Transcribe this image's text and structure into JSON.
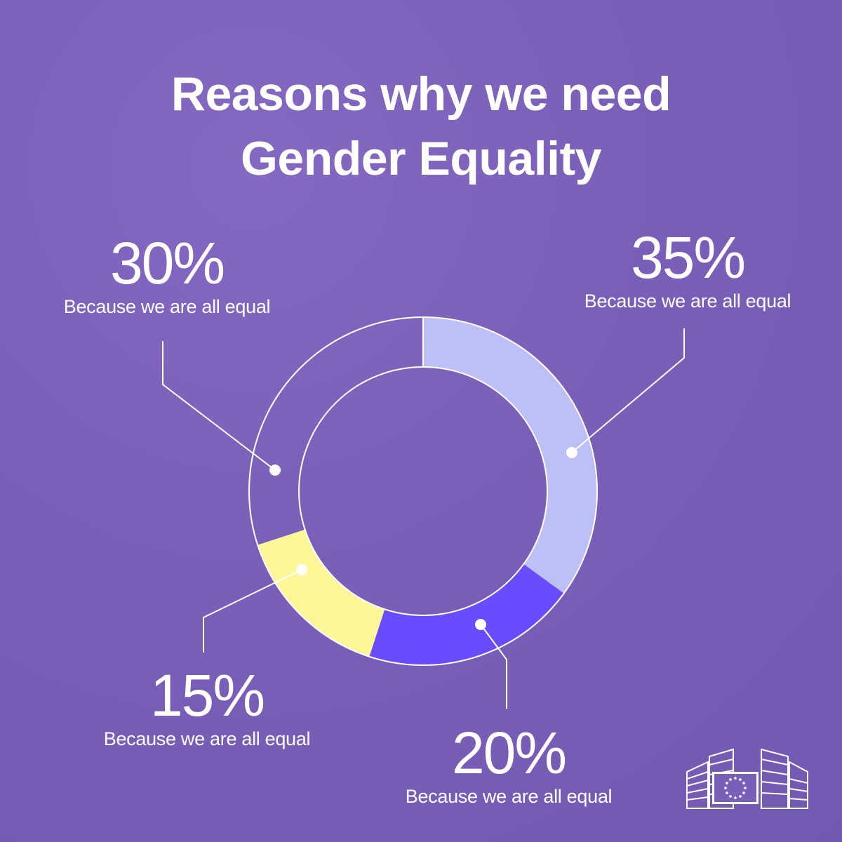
{
  "title": {
    "line1": "Reasons why we need",
    "line2": "Gender Equality"
  },
  "colors": {
    "background": "#7a5fb8",
    "light_periwinkle": "#bcc0f7",
    "blue_violet": "#6a4cff",
    "pale_yellow": "#fdf79a",
    "outline": "#ffffff"
  },
  "chart_data": {
    "type": "pie",
    "donut": true,
    "title": "Reasons why we need Gender Equality",
    "slices": [
      {
        "label": "Because we are all equal",
        "value": 35,
        "display": "35%",
        "color": "#bcc0f7"
      },
      {
        "label": "Because we are all equal",
        "value": 20,
        "display": "20%",
        "color": "#6a4cff"
      },
      {
        "label": "Because we are all equal",
        "value": 15,
        "display": "15%",
        "color": "#fdf79a"
      },
      {
        "label": "Because we are all equal",
        "value": 30,
        "display": "30%",
        "color": "none"
      }
    ]
  },
  "logo": {
    "icon": "european-commission-logo-icon"
  }
}
